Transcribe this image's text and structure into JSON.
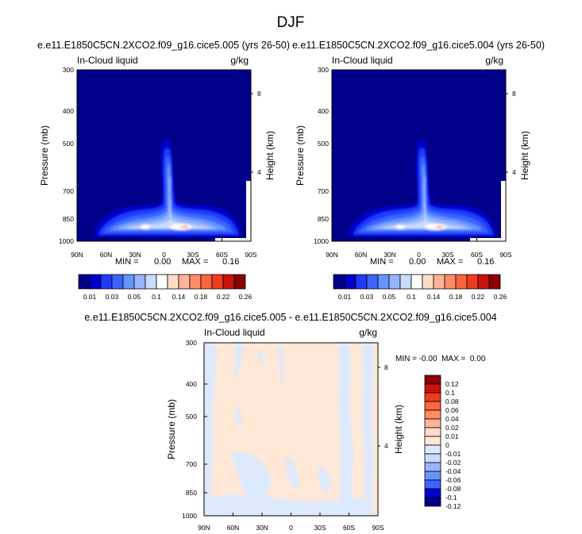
{
  "title": "DJF",
  "chart_data": [
    {
      "type": "heatmap",
      "title": "e.e11.E1850C5CN.2XCO2.f09_g16.cice5.005 (yrs 26-50)",
      "left_label": "In-Cloud liquid",
      "right_label": "g/kg",
      "ylabel": "Pressure (mb)",
      "ylabel_right": "Height (km)",
      "x_ticks": [
        "90N",
        "60N",
        "30N",
        "0",
        "30S",
        "60S",
        "90S"
      ],
      "y_ticks": [
        "300",
        "400",
        "500",
        "700",
        "850",
        "1000"
      ],
      "height_ticks": [
        "8",
        "4"
      ],
      "min_label": "MIN =",
      "min_value": "0.00",
      "max_label": "MAX =",
      "max_value": "0.16",
      "colorbar_labels": [
        "0.01",
        "0.03",
        "0.05",
        "0.1",
        "0.14",
        "0.18",
        "0.22",
        "0.26"
      ],
      "colorbar_colors": [
        "#00008b",
        "#0000cd",
        "#1e3cff",
        "#3c64ff",
        "#6496ff",
        "#96b4ff",
        "#c8dcff",
        "#ffffff",
        "#ffdcc8",
        "#ffb496",
        "#ff8c64",
        "#ff643c",
        "#f03c1e",
        "#c8140a",
        "#8b0000"
      ]
    },
    {
      "type": "heatmap",
      "title": "e.e11.E1850C5CN.2XCO2.f09_g16.cice5.004 (yrs 26-50)",
      "left_label": "In-Cloud liquid",
      "right_label": "g/kg",
      "ylabel": "Pressure (mb)",
      "ylabel_right": "Height (km)",
      "x_ticks": [
        "90N",
        "60N",
        "30N",
        "0",
        "30S",
        "60S",
        "90S"
      ],
      "y_ticks": [
        "300",
        "400",
        "500",
        "700",
        "850",
        "1000"
      ],
      "height_ticks": [
        "8",
        "4"
      ],
      "min_label": "MIN =",
      "min_value": "0.00",
      "max_label": "MAX =",
      "max_value": "0.16",
      "colorbar_labels": [
        "0.01",
        "0.03",
        "0.05",
        "0.1",
        "0.14",
        "0.18",
        "0.22",
        "0.26"
      ]
    },
    {
      "type": "heatmap",
      "title": "e.e11.E1850C5CN.2XCO2.f09_g16.cice5.005 - e.e11.E1850C5CN.2XCO2.f09_g16.cice5.004",
      "left_label": "In-Cloud liquid",
      "right_label": "g/kg",
      "ylabel": "Pressure (mb)",
      "ylabel_right": "Height (km)",
      "x_ticks": [
        "90N",
        "60N",
        "30N",
        "0",
        "30S",
        "60S",
        "90S"
      ],
      "y_ticks": [
        "300",
        "400",
        "500",
        "700",
        "850",
        "1000"
      ],
      "height_ticks": [
        "8",
        "4"
      ],
      "minmax_text": "MIN = -0.00  MAX =  0.00",
      "colorbar_labels": [
        "0.12",
        "0.1",
        "0.08",
        "0.06",
        "0.04",
        "0.02",
        "0.01",
        "0",
        "-0.01",
        "-0.02",
        "-0.04",
        "-0.06",
        "-0.08",
        "-0.1",
        "-0.12"
      ],
      "colorbar_colors": [
        "#8b0000",
        "#c8140a",
        "#f03c1e",
        "#ff643c",
        "#ff8c64",
        "#ffb496",
        "#ffdcc8",
        "#ffe8d6",
        "#dce9ff",
        "#c8dcff",
        "#96b4ff",
        "#6496ff",
        "#3c64ff",
        "#0000cd",
        "#00008b"
      ]
    }
  ]
}
